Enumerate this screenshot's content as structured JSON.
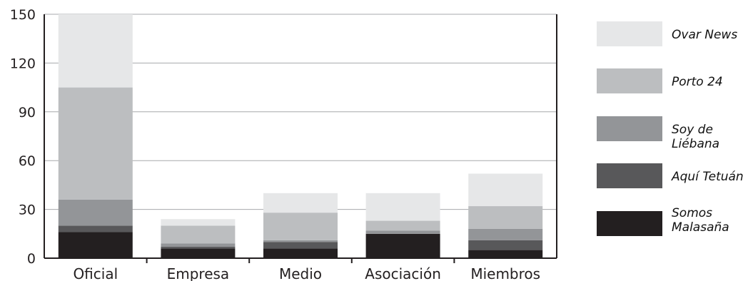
{
  "chart_data": {
    "type": "bar",
    "stacked": true,
    "categories": [
      "Oficial",
      "Empresa",
      "Medio",
      "Asociación",
      "Miembros"
    ],
    "ylim": [
      0,
      150
    ],
    "yticks": [
      0,
      30,
      60,
      90,
      120,
      150
    ],
    "grid": true,
    "legend_position": "right",
    "series": [
      {
        "name": "Somos Malasaña",
        "color": "#231f20",
        "values": [
          16,
          6,
          6,
          15,
          5
        ]
      },
      {
        "name": "Aquí Tetuán",
        "color": "#58585a",
        "values": [
          4,
          1,
          4,
          0,
          6
        ]
      },
      {
        "name": "Soy de Liébana",
        "color": "#939598",
        "values": [
          16,
          2,
          1,
          2,
          7
        ]
      },
      {
        "name": "Porto 24",
        "color": "#bcbec0",
        "values": [
          69,
          11,
          17,
          6,
          14
        ]
      },
      {
        "name": "Ovar News",
        "color": "#e6e7e8",
        "values": [
          45,
          4,
          12,
          17,
          20
        ]
      }
    ]
  }
}
